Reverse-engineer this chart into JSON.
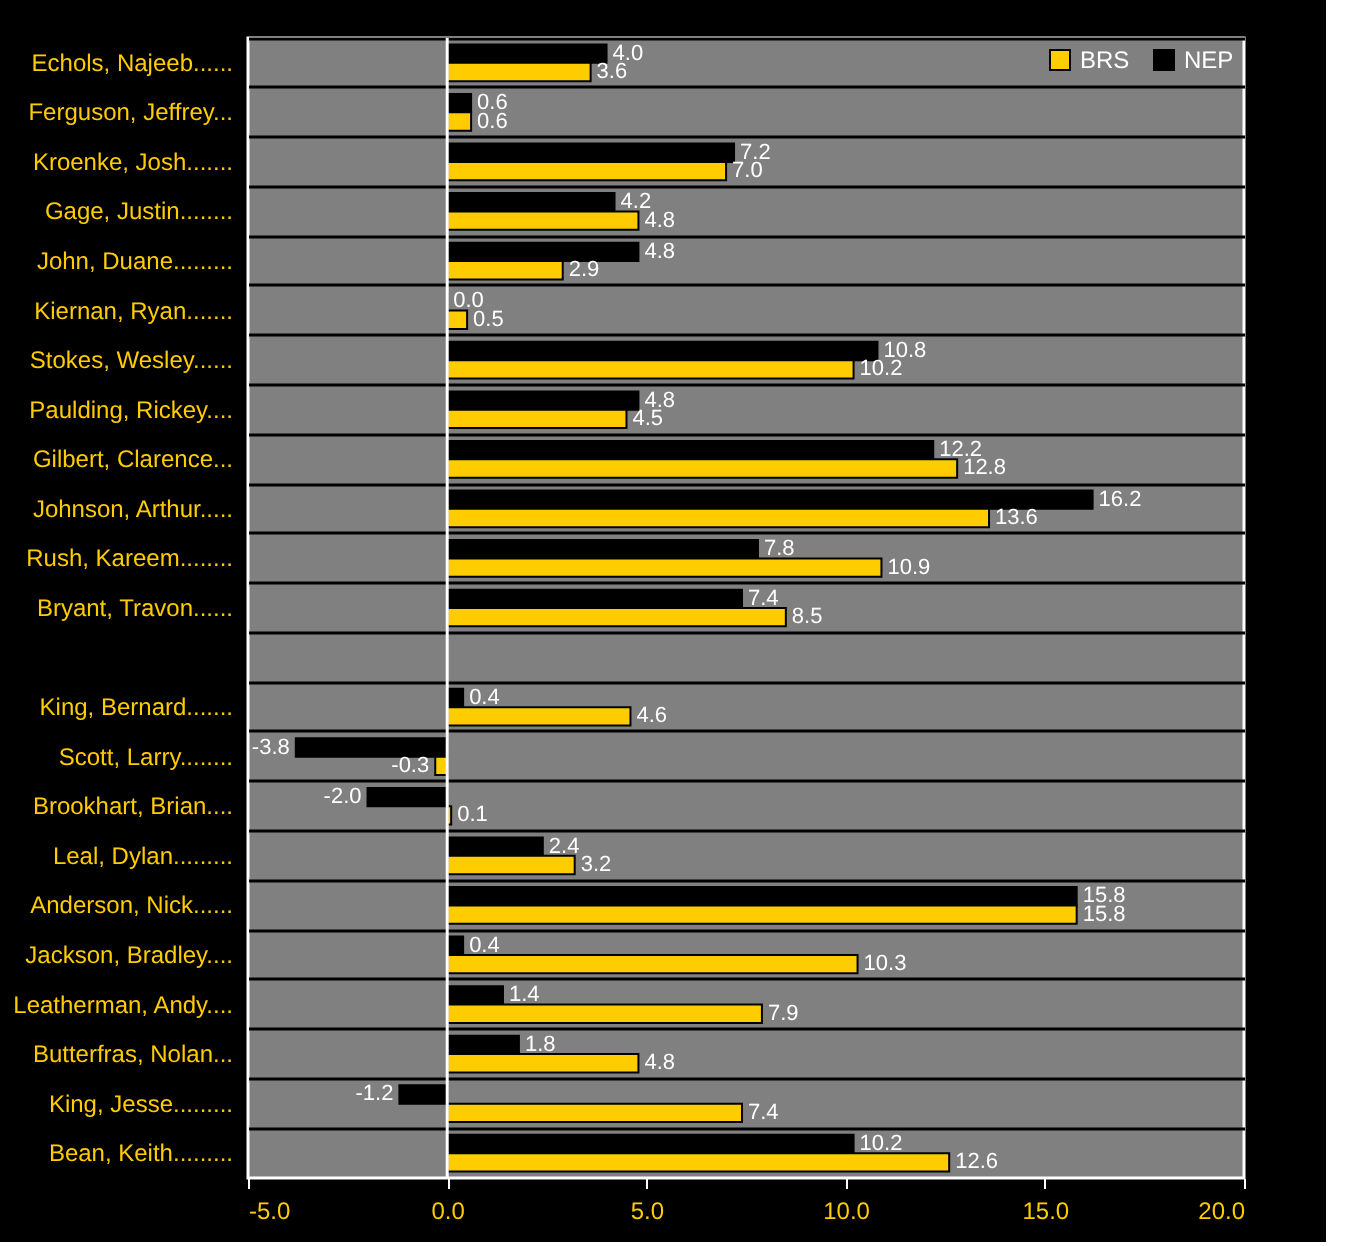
{
  "chart_data": {
    "type": "bar",
    "orientation": "horizontal",
    "categories": [
      "Echols, Najeeb......",
      "Ferguson, Jeffrey...",
      "Kroenke, Josh.......",
      "Gage, Justin........",
      "John, Duane.........",
      "Kiernan, Ryan.......",
      "Stokes, Wesley......",
      "Paulding, Rickey....",
      "Gilbert, Clarence...",
      "Johnson, Arthur.....",
      "Rush, Kareem........",
      "Bryant, Travon......",
      null,
      "King, Bernard.......",
      "Scott, Larry........",
      "Brookhart, Brian....",
      "Leal, Dylan.........",
      "Anderson, Nick......",
      "Jackson, Bradley....",
      "Leatherman, Andy....",
      "Butterfras, Nolan...",
      "King, Jesse.........",
      "Bean, Keith........."
    ],
    "series": [
      {
        "name": "NEP",
        "color": "#000000",
        "values": [
          4.0,
          0.6,
          7.2,
          4.2,
          4.8,
          0.0,
          10.8,
          4.8,
          12.2,
          16.2,
          7.8,
          7.4,
          null,
          0.4,
          -3.8,
          -2.0,
          2.4,
          15.8,
          0.4,
          1.4,
          1.8,
          -1.2,
          10.2
        ],
        "value_labels": [
          "4.0",
          "0.6",
          "7.2",
          "4.2",
          "4.8",
          "0.0",
          "10.8",
          "4.8",
          "12.2",
          "16.2",
          "7.8",
          "7.4",
          null,
          "0.4",
          "-3.8",
          "-2.0",
          "2.4",
          "15.8",
          "0.4",
          "1.4",
          "1.8",
          "-1.2",
          "10.2"
        ]
      },
      {
        "name": "BRS",
        "color": "#ffcc00",
        "values": [
          3.6,
          0.6,
          7.0,
          4.8,
          2.9,
          0.5,
          10.2,
          4.5,
          12.8,
          13.6,
          10.9,
          8.5,
          null,
          4.6,
          -0.3,
          0.1,
          3.2,
          15.8,
          10.3,
          7.9,
          4.8,
          7.4,
          12.6
        ],
        "value_labels": [
          "3.6",
          "0.6",
          "7.0",
          "4.8",
          "2.9",
          "0.5",
          "10.2",
          "4.5",
          "12.8",
          "13.6",
          "10.9",
          "8.5",
          null,
          "4.6",
          "-0.3",
          "0.1",
          "3.2",
          "15.8",
          "10.3",
          "7.9",
          "4.8",
          "7.4",
          "12.6"
        ]
      }
    ],
    "xlim": [
      -5,
      20
    ],
    "xticks": [
      {
        "value": -5,
        "label": "-5.0"
      },
      {
        "value": 0,
        "label": "0.0"
      },
      {
        "value": 5,
        "label": "5.0"
      },
      {
        "value": 10,
        "label": "10.0"
      },
      {
        "value": 15,
        "label": "15.0"
      },
      {
        "value": 20,
        "label": "20.0"
      }
    ],
    "ref_lines": [
      {
        "axis": "x",
        "value": 0,
        "color": "#ffffff"
      }
    ],
    "grid": "y",
    "legend": "top right"
  }
}
